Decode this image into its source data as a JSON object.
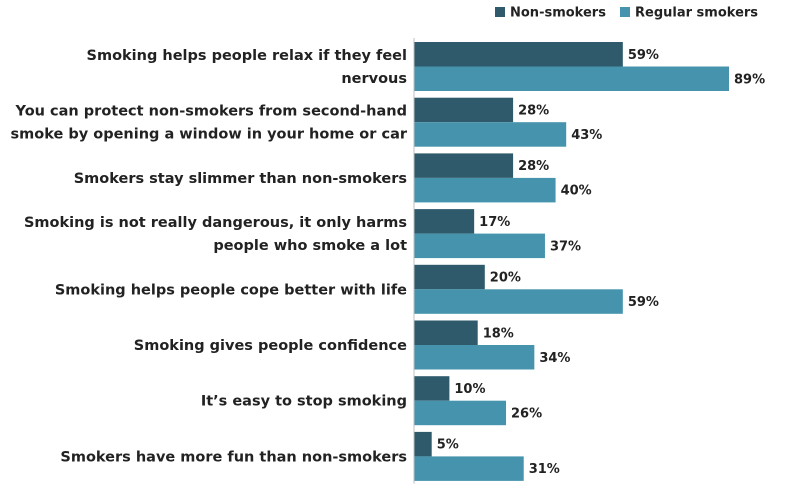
{
  "chart_data": {
    "type": "bar",
    "orientation": "horizontal",
    "categories": [
      [
        "Smoking helps people relax if they feel",
        "nervous"
      ],
      [
        "You can protect non-smokers from second-hand",
        "smoke by opening a window in your home or car"
      ],
      [
        "Smokers stay slimmer than non-smokers"
      ],
      [
        "Smoking is not really dangerous, it only harms",
        "people who smoke a lot"
      ],
      [
        "Smoking helps people cope better with life"
      ],
      [
        "Smoking gives people confidence"
      ],
      [
        "It’s easy to stop smoking"
      ],
      [
        "Smokers have more fun than non-smokers"
      ]
    ],
    "series": [
      {
        "name": "Non-smokers",
        "color": "#2e5a6b",
        "values": [
          59,
          28,
          28,
          17,
          20,
          18,
          10,
          5
        ],
        "labels": [
          "59%",
          "28%",
          "28%",
          "17%",
          "20%",
          "18%",
          "10%",
          "5%"
        ]
      },
      {
        "name": "Regular smokers",
        "color": "#4593ac",
        "values": [
          89,
          43,
          40,
          37,
          59,
          34,
          26,
          31
        ],
        "labels": [
          "89%",
          "43%",
          "40%",
          "37%",
          "59%",
          "34%",
          "26%",
          "31%"
        ]
      }
    ],
    "xlim": [
      0,
      100
    ],
    "grid": false,
    "legend_position": "top-right"
  }
}
